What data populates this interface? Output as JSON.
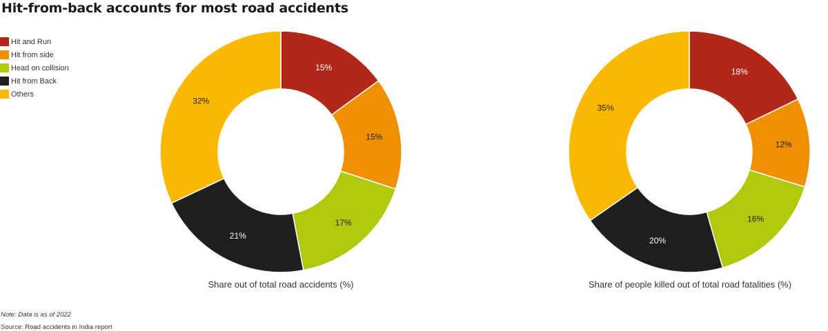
{
  "title": "Hit-from-back accounts for most road accidents",
  "legend": [
    {
      "label": "Hit and Run",
      "color": "#b0281a"
    },
    {
      "label": "Hit from side",
      "color": "#f09000"
    },
    {
      "label": "Head on collision",
      "color": "#aec90e"
    },
    {
      "label": "Hit from Back",
      "color": "#1e1e1e"
    },
    {
      "label": "Others",
      "color": "#fbb800"
    }
  ],
  "chart_data": [
    {
      "type": "pie",
      "donut": true,
      "xlabel": "Share out of total road accidents (%)",
      "categories": [
        "Hit and Run",
        "Hit from side",
        "Head on collision",
        "Hit from Back",
        "Others"
      ],
      "values": [
        15,
        15,
        17,
        21,
        32
      ],
      "labels": [
        "15%",
        "15%",
        "17%",
        "21%",
        "32%"
      ]
    },
    {
      "type": "pie",
      "donut": true,
      "xlabel": "Share of people killed out of total road fatalities (%)",
      "categories": [
        "Hit and Run",
        "Hit from side",
        "Head on collision",
        "Hit from Back",
        "Others"
      ],
      "values": [
        18,
        12,
        16,
        20,
        35
      ],
      "labels": [
        "18%",
        "12%",
        "16%",
        "20%",
        "35%"
      ]
    }
  ],
  "footer": {
    "note": "Note: Data is as of 2022",
    "source": "Source: Road accidents in India report"
  }
}
